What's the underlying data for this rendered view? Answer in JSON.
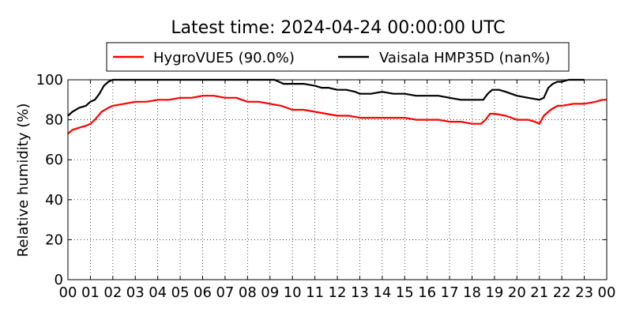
{
  "chart_data": {
    "type": "line",
    "title": "Latest time: 2024-04-24 00:00:00 UTC",
    "ylabel": "Relative humidity (%)",
    "xlabel": "",
    "x_ticks": [
      "00",
      "01",
      "02",
      "03",
      "04",
      "05",
      "06",
      "07",
      "08",
      "09",
      "10",
      "11",
      "12",
      "13",
      "14",
      "15",
      "16",
      "17",
      "18",
      "19",
      "20",
      "21",
      "22",
      "23",
      "00"
    ],
    "xlim": [
      0,
      24
    ],
    "y_ticks": [
      "0",
      "20",
      "40",
      "60",
      "80",
      "100"
    ],
    "ylim": [
      0,
      100
    ],
    "grid": true,
    "legend_position": "top-center",
    "series": [
      {
        "name": "HygroVUE5 (90.0%)",
        "color": "#ff0000",
        "points": [
          [
            0,
            73
          ],
          [
            0.2,
            75
          ],
          [
            0.5,
            76
          ],
          [
            0.8,
            77
          ],
          [
            1.0,
            78
          ],
          [
            1.2,
            80
          ],
          [
            1.5,
            84
          ],
          [
            1.8,
            86
          ],
          [
            2.0,
            87
          ],
          [
            2.5,
            88
          ],
          [
            3.0,
            89
          ],
          [
            3.5,
            89
          ],
          [
            4.0,
            90
          ],
          [
            4.5,
            90
          ],
          [
            5.0,
            91
          ],
          [
            5.5,
            91
          ],
          [
            6.0,
            92
          ],
          [
            6.5,
            92
          ],
          [
            7.0,
            91
          ],
          [
            7.5,
            91
          ],
          [
            8.0,
            89
          ],
          [
            8.5,
            89
          ],
          [
            9.0,
            88
          ],
          [
            9.5,
            87
          ],
          [
            10.0,
            85
          ],
          [
            10.5,
            85
          ],
          [
            11.0,
            84
          ],
          [
            11.5,
            83
          ],
          [
            12.0,
            82
          ],
          [
            12.5,
            82
          ],
          [
            13.0,
            81
          ],
          [
            13.5,
            81
          ],
          [
            14.0,
            81
          ],
          [
            14.5,
            81
          ],
          [
            15.0,
            81
          ],
          [
            15.5,
            80
          ],
          [
            16.0,
            80
          ],
          [
            16.5,
            80
          ],
          [
            17.0,
            79
          ],
          [
            17.5,
            79
          ],
          [
            18.0,
            78
          ],
          [
            18.4,
            78
          ],
          [
            18.6,
            80
          ],
          [
            18.8,
            83
          ],
          [
            19.0,
            83
          ],
          [
            19.5,
            82
          ],
          [
            20.0,
            80
          ],
          [
            20.5,
            80
          ],
          [
            20.8,
            79
          ],
          [
            21.0,
            78
          ],
          [
            21.2,
            82
          ],
          [
            21.5,
            85
          ],
          [
            21.8,
            87
          ],
          [
            22.0,
            87
          ],
          [
            22.5,
            88
          ],
          [
            23.0,
            88
          ],
          [
            23.5,
            89
          ],
          [
            23.8,
            90
          ],
          [
            24.0,
            90
          ]
        ]
      },
      {
        "name": "Vaisala HMP35D (nan%)",
        "color": "#000000",
        "points": [
          [
            0,
            82
          ],
          [
            0.2,
            84
          ],
          [
            0.5,
            86
          ],
          [
            0.8,
            87
          ],
          [
            1.0,
            89
          ],
          [
            1.2,
            90
          ],
          [
            1.4,
            93
          ],
          [
            1.6,
            97
          ],
          [
            1.8,
            99
          ],
          [
            2.0,
            100
          ],
          [
            2.1,
            100
          ],
          [
            9.0,
            100
          ],
          [
            9.2,
            100
          ],
          [
            9.4,
            99
          ],
          [
            9.6,
            98
          ],
          [
            10.0,
            98
          ],
          [
            10.5,
            98
          ],
          [
            11.0,
            97
          ],
          [
            11.3,
            96
          ],
          [
            11.6,
            96
          ],
          [
            12.0,
            95
          ],
          [
            12.4,
            95
          ],
          [
            12.8,
            94
          ],
          [
            13.0,
            93
          ],
          [
            13.5,
            93
          ],
          [
            14.0,
            94
          ],
          [
            14.5,
            93
          ],
          [
            15.0,
            93
          ],
          [
            15.5,
            92
          ],
          [
            16.0,
            92
          ],
          [
            16.5,
            92
          ],
          [
            17.0,
            91
          ],
          [
            17.5,
            90
          ],
          [
            18.0,
            90
          ],
          [
            18.5,
            90
          ],
          [
            18.7,
            93
          ],
          [
            18.9,
            95
          ],
          [
            19.2,
            95
          ],
          [
            19.5,
            94
          ],
          [
            20.0,
            92
          ],
          [
            20.5,
            91
          ],
          [
            21.0,
            90
          ],
          [
            21.2,
            91
          ],
          [
            21.4,
            96
          ],
          [
            21.6,
            98
          ],
          [
            21.8,
            99
          ],
          [
            22.0,
            99
          ],
          [
            22.3,
            100
          ],
          [
            23.0,
            100
          ]
        ]
      }
    ]
  }
}
